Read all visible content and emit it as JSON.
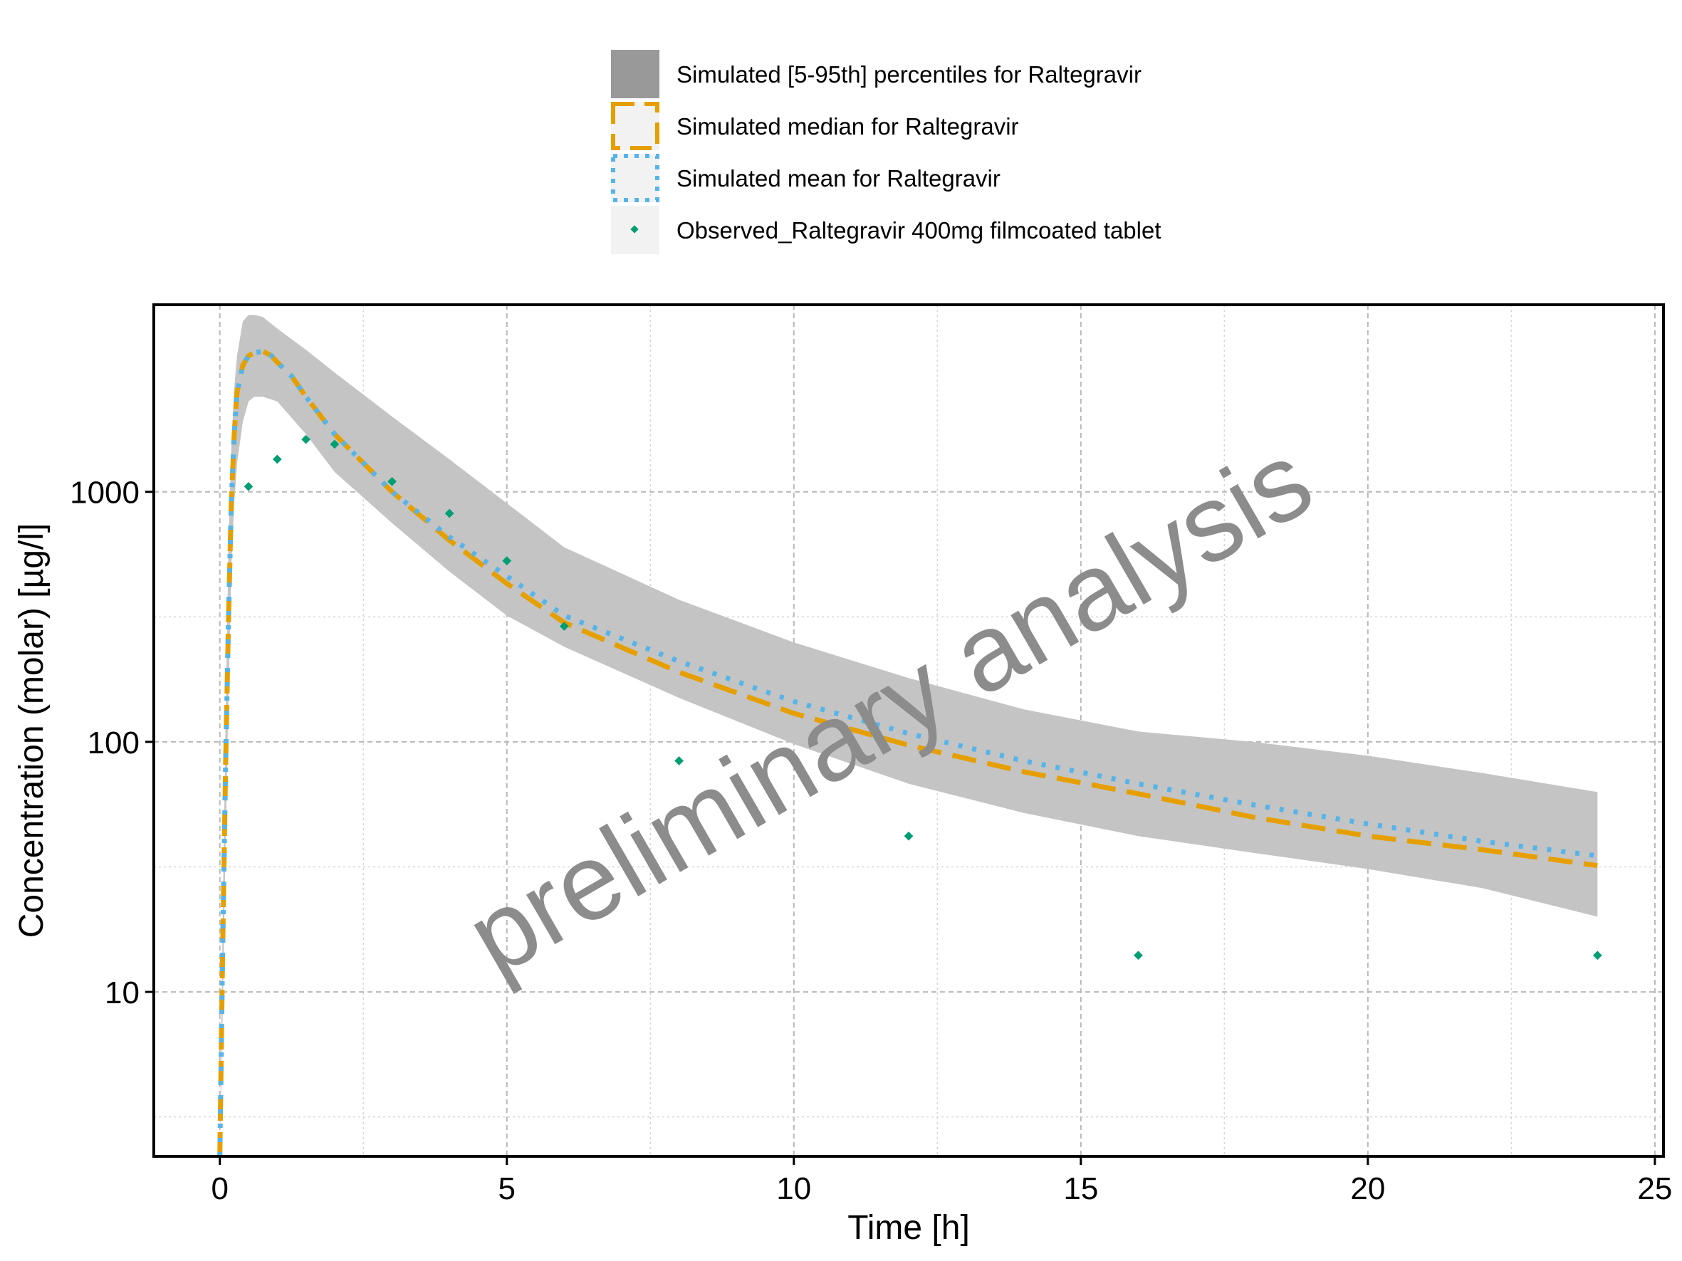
{
  "chart_data": {
    "type": "line",
    "xlabel": "Time [h]",
    "ylabel": "Concentration (molar) [µg/l]",
    "x_scale": "linear",
    "y_scale": "log10",
    "xlim": [
      -1.15,
      25.15
    ],
    "ylim": [
      2.2,
      5600
    ],
    "x_ticks": [
      0,
      5,
      10,
      15,
      20,
      25
    ],
    "x_tick_labels": [
      "0",
      "5",
      "10",
      "15",
      "20",
      "25"
    ],
    "y_ticks": [
      10,
      100,
      1000
    ],
    "y_tick_labels": [
      "10",
      "100",
      "1000"
    ],
    "grid": true,
    "legend_position": "top",
    "watermark": "preliminary analysis",
    "colors": {
      "band_legend": "#999999",
      "band_fill": "#c4c4c4",
      "median": "#e69f00",
      "mean": "#56b4e9",
      "observed": "#009e73",
      "watermark": "#8c8c8c"
    },
    "series": [
      {
        "name": "Simulated [5-95th] percentiles for Raltegravir",
        "kind": "band",
        "x": [
          0,
          0.05,
          0.1,
          0.15,
          0.2,
          0.25,
          0.3,
          0.4,
          0.5,
          0.6,
          0.75,
          1.0,
          1.5,
          2,
          3,
          4,
          5,
          6,
          8,
          10,
          12,
          14,
          16,
          18,
          20,
          22,
          24
        ],
        "lower": [
          2.2,
          8,
          40,
          150,
          500,
          900,
          1300,
          1900,
          2300,
          2400,
          2400,
          2300,
          1700,
          1200,
          750,
          480,
          320,
          240,
          150,
          98,
          68,
          52,
          42,
          36,
          31,
          26,
          20
        ],
        "upper": [
          2.2,
          20,
          120,
          600,
          1500,
          2600,
          3500,
          4800,
          5100,
          5100,
          5000,
          4500,
          3700,
          3000,
          2000,
          1350,
          900,
          600,
          370,
          250,
          180,
          135,
          110,
          100,
          88,
          75,
          63
        ]
      },
      {
        "name": "Simulated median for Raltegravir",
        "kind": "line",
        "style": "dashed",
        "x": [
          0,
          0.05,
          0.1,
          0.15,
          0.2,
          0.25,
          0.3,
          0.4,
          0.5,
          0.6,
          0.75,
          0.9,
          1.0,
          1.25,
          1.5,
          2,
          3,
          4,
          5,
          6,
          8,
          10,
          12,
          14,
          16,
          18,
          20,
          22,
          24
        ],
        "y": [
          2.2,
          15,
          80,
          300,
          900,
          1700,
          2500,
          3200,
          3500,
          3600,
          3650,
          3500,
          3300,
          2900,
          2400,
          1700,
          1000,
          640,
          430,
          300,
          190,
          130,
          97,
          76,
          62,
          50,
          42,
          37,
          32
        ]
      },
      {
        "name": "Simulated mean for Raltegravir",
        "kind": "line",
        "style": "dotted",
        "x": [
          0,
          0.05,
          0.1,
          0.15,
          0.2,
          0.25,
          0.3,
          0.4,
          0.5,
          0.6,
          0.75,
          0.9,
          1.0,
          1.25,
          1.5,
          2,
          3,
          4,
          5,
          6,
          8,
          10,
          12,
          14,
          16,
          18,
          20,
          22,
          24
        ],
        "y": [
          2.2,
          15,
          80,
          300,
          900,
          1700,
          2500,
          3200,
          3500,
          3600,
          3650,
          3500,
          3300,
          2900,
          2400,
          1700,
          1000,
          660,
          460,
          320,
          210,
          145,
          108,
          84,
          68,
          56,
          47,
          40,
          35
        ]
      },
      {
        "name": "Observed_Raltegravir 400mg filmcoated tablet",
        "kind": "scatter",
        "x": [
          0.5,
          1,
          1.5,
          2,
          3,
          4,
          5,
          6,
          8,
          12,
          16,
          24
        ],
        "y": [
          1050,
          1350,
          1620,
          1550,
          1100,
          820,
          530,
          290,
          84,
          42,
          14,
          14
        ]
      }
    ]
  }
}
